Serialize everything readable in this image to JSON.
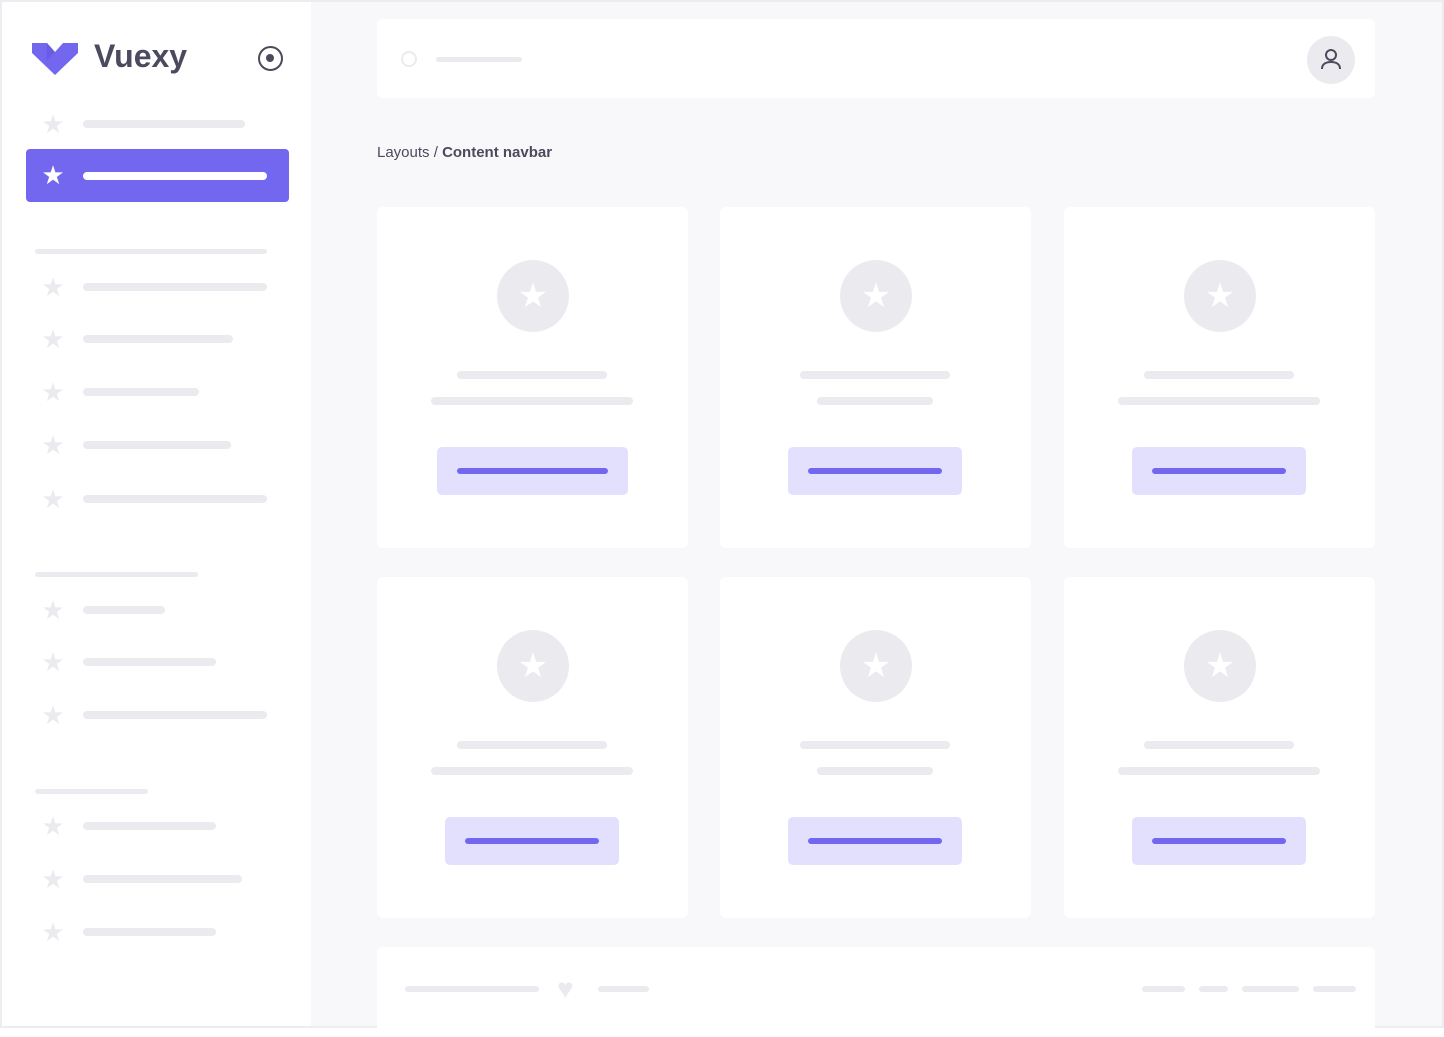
{
  "brand": {
    "name": "Vuexy",
    "accent": "#7367F0",
    "toggle_icon": "radio-circle-icon"
  },
  "sidebar": {
    "active_index": 1
  },
  "breadcrumb": {
    "parent": "Layouts",
    "separator": " / ",
    "current": "Content navbar"
  },
  "header": {
    "search_icon": "search-icon",
    "avatar_icon": "user-icon"
  },
  "footer": {
    "heart_icon": "heart-icon"
  }
}
